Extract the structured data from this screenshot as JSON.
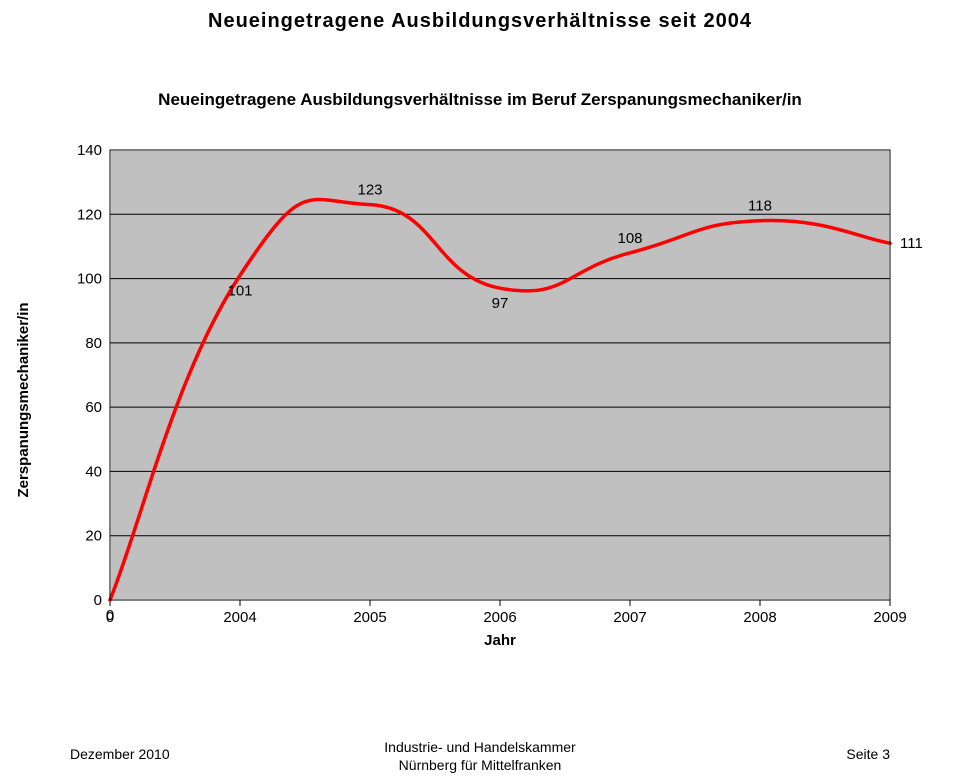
{
  "title": "Neueingetragene Ausbildungsverhältnisse seit 2004",
  "subtitle": "Neueingetragene Ausbildungsverhältnisse im Beruf Zerspanungsmechaniker/in",
  "title_fontsize": 20,
  "subtitle_fontsize": 17,
  "footer": {
    "left": "Dezember 2010",
    "center_line1": "Industrie- und Handelskammer",
    "center_line2": "Nürnberg für Mittelfranken",
    "right": "Seite 3",
    "fontsize": 14
  },
  "chart": {
    "type": "line",
    "ylabel": "Zerspanungsmechaniker/in",
    "ylabel_fontsize": 15,
    "xlabel": "Jahr",
    "xlabel_fontsize": 15,
    "plot_background": "#c0c0c0",
    "outer_border_color": "#000000",
    "gridline_color": "#000000",
    "line_color": "#ff0000",
    "line_width": 3.5,
    "tick_fontsize": 15,
    "datalabel_fontsize": 15,
    "x_categories": [
      "0",
      "2004",
      "2005",
      "2006",
      "2007",
      "2008",
      "2009"
    ],
    "y_ticks": [
      0,
      20,
      40,
      60,
      80,
      100,
      120,
      140
    ],
    "ylim": [
      0,
      140
    ],
    "series": {
      "values": [
        0,
        101,
        123,
        97,
        108,
        118,
        111
      ],
      "label_positions": [
        "below",
        "below",
        "above",
        "below",
        "above",
        "above",
        "right"
      ]
    }
  }
}
